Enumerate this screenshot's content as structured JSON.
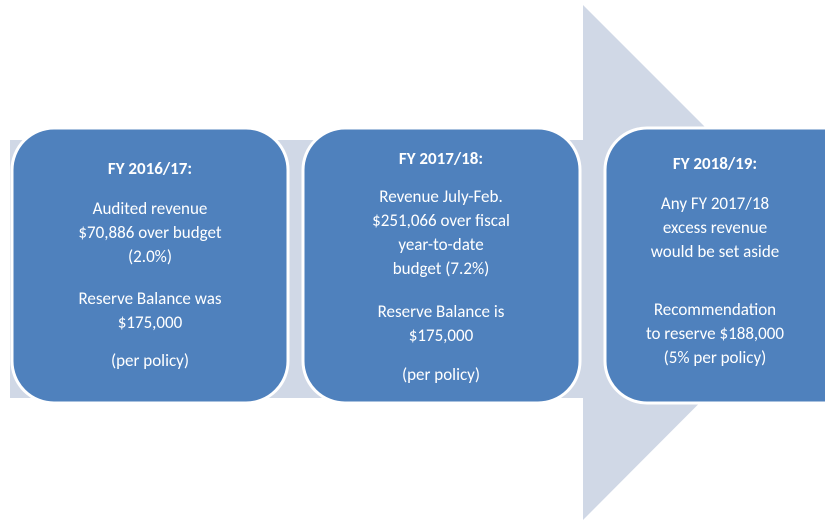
{
  "nodes": [
    {
      "title": "FY 2016/17:",
      "paragraphs": [
        [
          "Audited revenue",
          "$70,886 over budget",
          "(2.0%)"
        ],
        [
          "Reserve Balance was",
          "$175,000"
        ],
        [
          "(per policy)"
        ]
      ]
    },
    {
      "title": "FY 2017/18:",
      "paragraphs": [
        [
          "Revenue July-Feb.",
          "$251,066 over fiscal",
          "year-to-date",
          "budget (7.2%)"
        ],
        [
          "Reserve Balance is",
          "$175,000"
        ],
        [
          "(per policy)"
        ]
      ]
    },
    {
      "title": "FY 2018/19:",
      "paragraphs": [
        [
          "Any FY 2017/18",
          "excess revenue",
          "would be set aside"
        ],
        [
          "Recommendation",
          "to reserve $188,000",
          "(5% per policy)"
        ]
      ]
    }
  ]
}
